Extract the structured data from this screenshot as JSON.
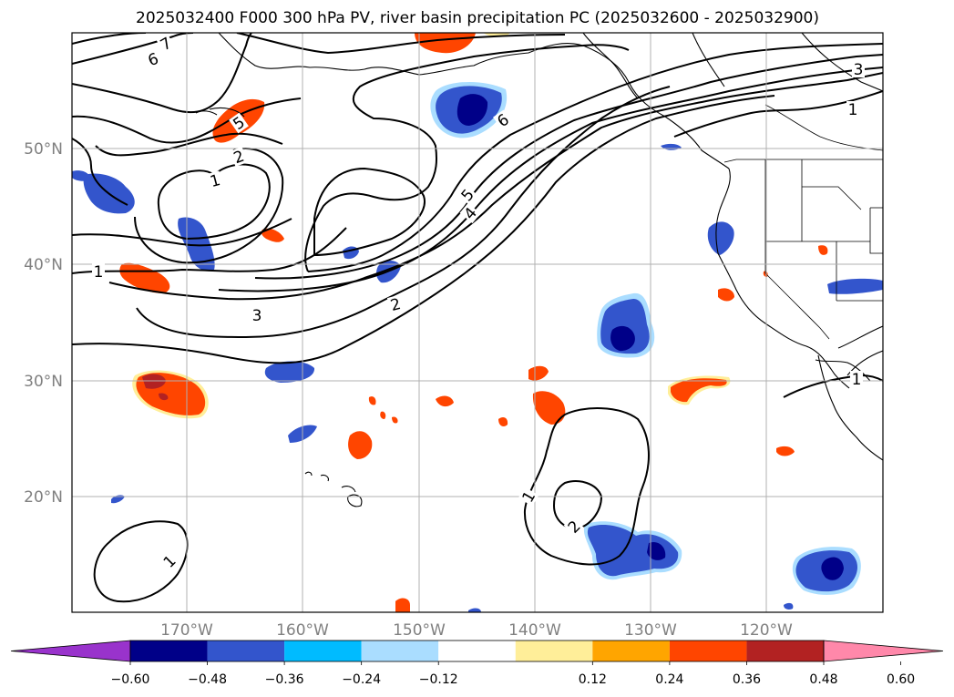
{
  "title": "2025032400 F000 300 hPa PV, river basin precipitation PC (2025032600 - 2025032900)",
  "lat_labels": [
    "50°N",
    "40°N",
    "30°N",
    "20°N"
  ],
  "lon_labels": [
    "170°W",
    "160°W",
    "150°W",
    "140°W",
    "130°W",
    "120°W"
  ],
  "colorbar": {
    "colors": [
      "#9933cc",
      "#000088",
      "#3355cc",
      "#00bbff",
      "#aaddff",
      "#ffffff",
      "#ffee99",
      "#ffa500",
      "#ff4500",
      "#b22222",
      "#ff88aa"
    ],
    "tick_labels": [
      "−0.60",
      "−0.48",
      "−0.36",
      "−0.24",
      "−0.12",
      "0.12",
      "0.24",
      "0.36",
      "0.48",
      "0.60"
    ]
  },
  "contour_labels": [
    {
      "text": "7"
    },
    {
      "text": "6"
    },
    {
      "text": "5"
    },
    {
      "text": "2"
    },
    {
      "text": "1"
    },
    {
      "text": "1"
    },
    {
      "text": "6"
    },
    {
      "text": "5"
    },
    {
      "text": "4"
    },
    {
      "text": "3"
    },
    {
      "text": "2"
    },
    {
      "text": "3"
    },
    {
      "text": "1"
    },
    {
      "text": "1"
    },
    {
      "text": "1"
    },
    {
      "text": "2"
    },
    {
      "text": "1"
    }
  ]
}
